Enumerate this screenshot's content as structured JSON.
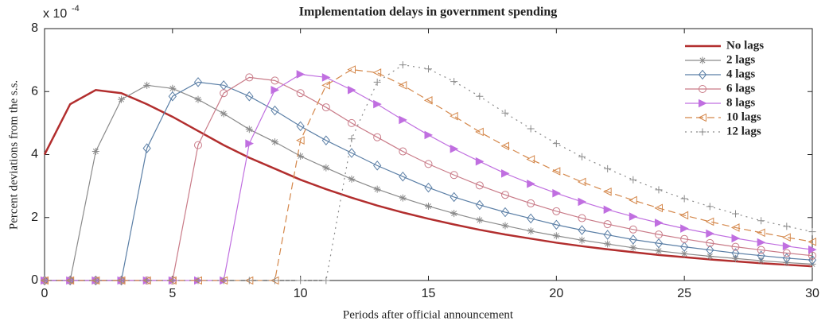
{
  "chart_data": {
    "type": "line",
    "title": "Implementation delays in government spending",
    "x_label": "Periods after official announcement",
    "y_label": "Percent deviations from the s.s.",
    "y_multiplier": "x 10",
    "y_exponent": "-4",
    "x": [
      0,
      1,
      2,
      3,
      4,
      5,
      6,
      7,
      8,
      9,
      10,
      11,
      12,
      13,
      14,
      15,
      16,
      17,
      18,
      19,
      20,
      21,
      22,
      23,
      24,
      25,
      26,
      27,
      28,
      29,
      30
    ],
    "xlim": [
      0,
      30
    ],
    "xticks": [
      0,
      5,
      10,
      15,
      20,
      25,
      30
    ],
    "ylim": [
      0,
      8
    ],
    "yticks": [
      0,
      2,
      4,
      6,
      8
    ],
    "legend": "upper right",
    "series": [
      {
        "name": "No lags",
        "color": "#b22e2e",
        "marker": "none",
        "dash": "solid",
        "values": [
          4.0,
          5.6,
          6.05,
          5.95,
          5.6,
          5.2,
          4.75,
          4.3,
          3.9,
          3.55,
          3.2,
          2.9,
          2.63,
          2.38,
          2.16,
          1.96,
          1.78,
          1.61,
          1.46,
          1.33,
          1.2,
          1.09,
          0.99,
          0.9,
          0.81,
          0.74,
          0.67,
          0.61,
          0.55,
          0.5,
          0.45
        ]
      },
      {
        "name": "2 lags",
        "color": "#8a8a8a",
        "marker": "asterisk",
        "dash": "solid",
        "values": [
          0,
          0,
          4.1,
          5.75,
          6.2,
          6.1,
          5.75,
          5.3,
          4.8,
          4.4,
          3.95,
          3.58,
          3.22,
          2.9,
          2.62,
          2.36,
          2.13,
          1.92,
          1.74,
          1.57,
          1.42,
          1.28,
          1.16,
          1.04,
          0.94,
          0.85,
          0.77,
          0.7,
          0.63,
          0.57,
          0.52
        ]
      },
      {
        "name": "4 lags",
        "color": "#5b7fa6",
        "marker": "diamond",
        "dash": "solid",
        "values": [
          0,
          0,
          0,
          0,
          4.2,
          5.85,
          6.3,
          6.2,
          5.85,
          5.4,
          4.9,
          4.45,
          4.05,
          3.65,
          3.3,
          2.95,
          2.65,
          2.4,
          2.17,
          1.97,
          1.77,
          1.6,
          1.45,
          1.3,
          1.18,
          1.07,
          0.97,
          0.87,
          0.79,
          0.71,
          0.65
        ]
      },
      {
        "name": "6 lags",
        "color": "#c97b88",
        "marker": "circle",
        "dash": "solid",
        "values": [
          0,
          0,
          0,
          0,
          0,
          0,
          4.3,
          5.95,
          6.45,
          6.35,
          5.95,
          5.5,
          5.0,
          4.55,
          4.1,
          3.7,
          3.35,
          3.02,
          2.72,
          2.45,
          2.2,
          1.98,
          1.79,
          1.62,
          1.46,
          1.32,
          1.19,
          1.07,
          0.97,
          0.87,
          0.79
        ]
      },
      {
        "name": "8 lags",
        "color": "#c06fe0",
        "marker": "triangle-right",
        "dash": "solid",
        "values": [
          0,
          0,
          0,
          0,
          0,
          0,
          0,
          0,
          4.35,
          6.05,
          6.55,
          6.45,
          6.05,
          5.6,
          5.1,
          4.62,
          4.18,
          3.78,
          3.4,
          3.07,
          2.77,
          2.5,
          2.25,
          2.03,
          1.83,
          1.65,
          1.49,
          1.34,
          1.21,
          1.09,
          0.98
        ]
      },
      {
        "name": "10 lags",
        "color": "#d4874a",
        "marker": "triangle-left",
        "dash": "dashed",
        "values": [
          0,
          0,
          0,
          0,
          0,
          0,
          0,
          0,
          0,
          0,
          4.45,
          6.2,
          6.7,
          6.6,
          6.2,
          5.72,
          5.22,
          4.72,
          4.27,
          3.85,
          3.47,
          3.13,
          2.82,
          2.55,
          2.3,
          2.07,
          1.87,
          1.68,
          1.52,
          1.37,
          1.23
        ]
      },
      {
        "name": "12 lags",
        "color": "#8a8a8a",
        "marker": "plus",
        "dash": "dotted",
        "values": [
          0,
          0,
          0,
          0,
          0,
          0,
          0,
          0,
          0,
          0,
          0,
          0,
          4.5,
          6.3,
          6.85,
          6.72,
          6.32,
          5.85,
          5.32,
          4.82,
          4.35,
          3.93,
          3.55,
          3.2,
          2.88,
          2.6,
          2.35,
          2.12,
          1.9,
          1.72,
          1.55
        ]
      }
    ]
  }
}
